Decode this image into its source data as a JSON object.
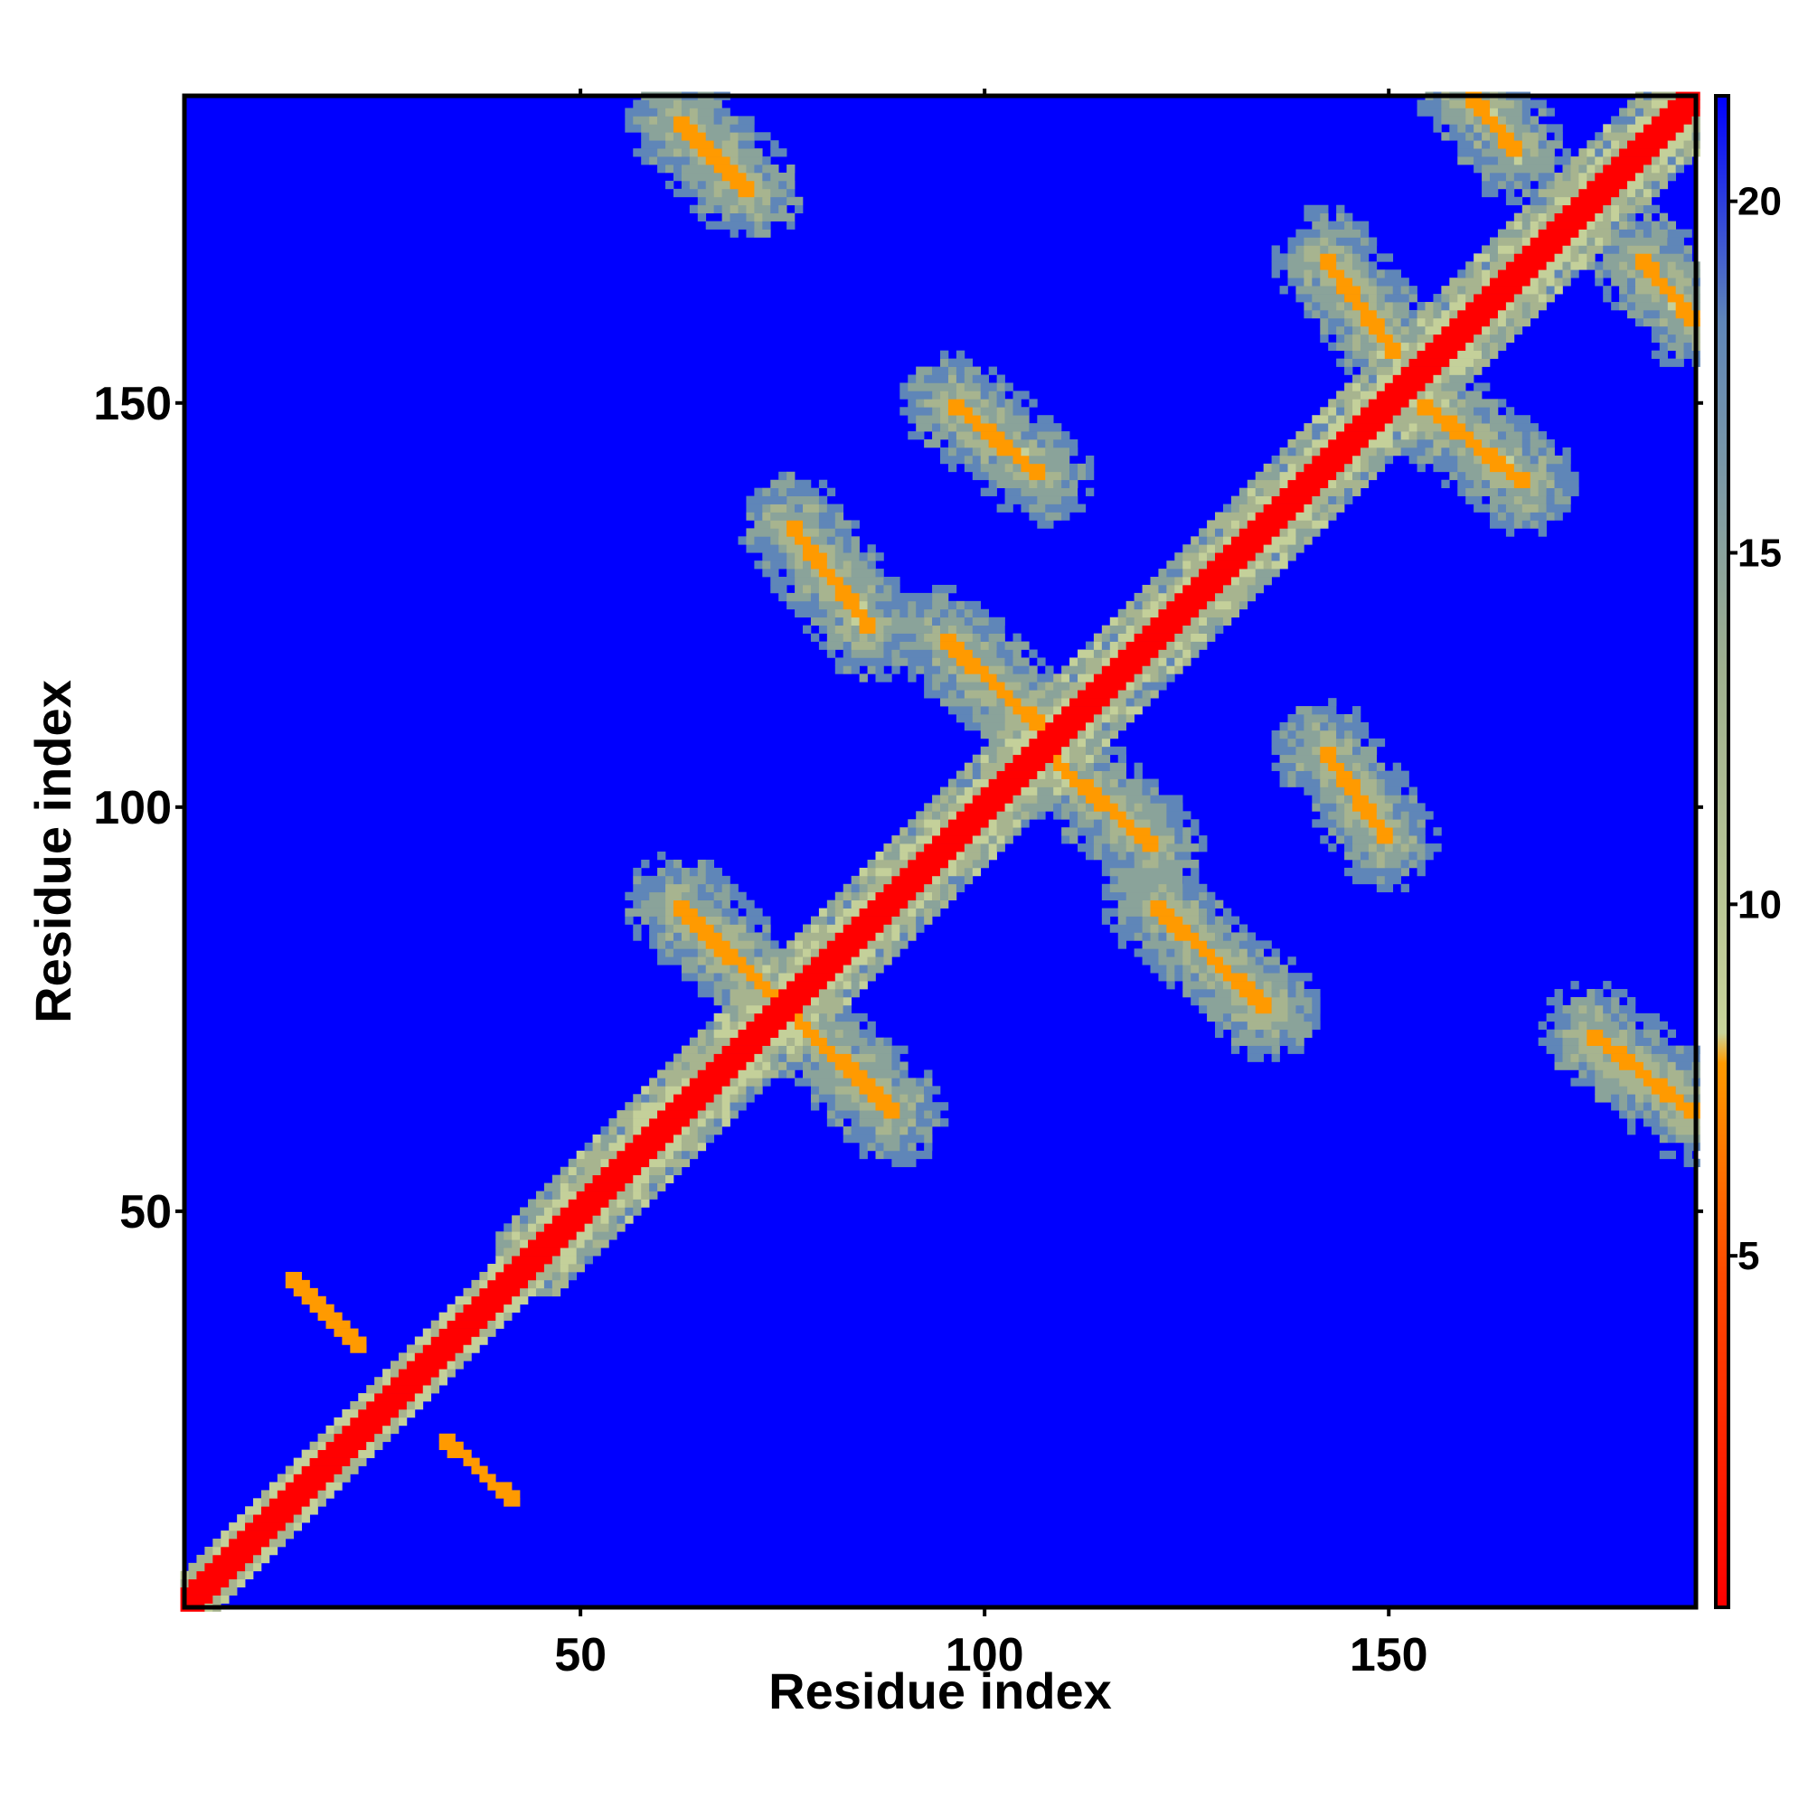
{
  "chart_data": {
    "type": "heatmap",
    "title": "",
    "xlabel": "Residue index",
    "ylabel": "Residue index",
    "n_residues": 188,
    "xlim": [
      1,
      188
    ],
    "ylim": [
      1,
      188
    ],
    "x_ticks": [
      50,
      100,
      150
    ],
    "y_ticks": [
      50,
      100,
      150
    ],
    "colorbar": {
      "range": [
        0,
        21.5
      ],
      "ticks": [
        5,
        10,
        15,
        20
      ],
      "tick_labels": [
        "5",
        "10",
        "15",
        "20"
      ],
      "colors": [
        "#ff0000",
        "#ff8c00",
        "#c7d49a",
        "#5f86b8",
        "#0000ff"
      ],
      "background": "#0000ff"
    },
    "diagonal": {
      "value": 0.5,
      "halfwidth_residues": 2
    },
    "contact_bands": [
      {
        "name": "anti-parallel",
        "x0": 14,
        "y0": 42,
        "x1": 23,
        "y1": 33,
        "value": 6.5
      },
      {
        "name": "anti-parallel",
        "x0": 33,
        "y0": 22,
        "x1": 42,
        "y1": 14,
        "value": 6.5
      },
      {
        "name": "anti-parallel",
        "x0": 62,
        "y0": 88,
        "x1": 89,
        "y1": 62,
        "value": 7.0
      },
      {
        "name": "anti-parallel",
        "x0": 62,
        "y0": 185,
        "x1": 71,
        "y1": 176,
        "value": 7.0
      },
      {
        "name": "anti-parallel",
        "x0": 76,
        "y0": 135,
        "x1": 86,
        "y1": 122,
        "value": 7.0
      },
      {
        "name": "anti-parallel",
        "x0": 96,
        "y0": 150,
        "x1": 107,
        "y1": 141,
        "value": 7.0
      },
      {
        "name": "anti-parallel",
        "x0": 95,
        "y0": 121,
        "x1": 109,
        "y1": 108,
        "value": 7.0
      },
      {
        "name": "anti-parallel",
        "x0": 106,
        "y0": 108,
        "x1": 121,
        "y1": 95,
        "value": 7.0
      },
      {
        "name": "anti-parallel",
        "x0": 121,
        "y0": 88,
        "x1": 135,
        "y1": 75,
        "value": 7.0
      },
      {
        "name": "anti-parallel",
        "x0": 142,
        "y0": 107,
        "x1": 150,
        "y1": 96,
        "value": 7.0
      },
      {
        "name": "anti-parallel",
        "x0": 142,
        "y0": 168,
        "x1": 151,
        "y1": 156,
        "value": 7.0
      },
      {
        "name": "anti-parallel",
        "x0": 154,
        "y0": 150,
        "x1": 167,
        "y1": 140,
        "value": 7.0
      },
      {
        "name": "anti-parallel",
        "x0": 175,
        "y0": 72,
        "x1": 188,
        "y1": 62,
        "value": 7.0
      },
      {
        "name": "anti-parallel",
        "x0": 181,
        "y0": 168,
        "x1": 188,
        "y1": 160,
        "value": 7.0
      },
      {
        "name": "anti-parallel",
        "x0": 160,
        "y0": 188,
        "x1": 166,
        "y1": 181,
        "value": 7.0
      }
    ],
    "halo_zones": [
      {
        "x0": 55,
        "x1": 188,
        "y0": 55,
        "y1": 188,
        "value": 14.5
      }
    ]
  }
}
